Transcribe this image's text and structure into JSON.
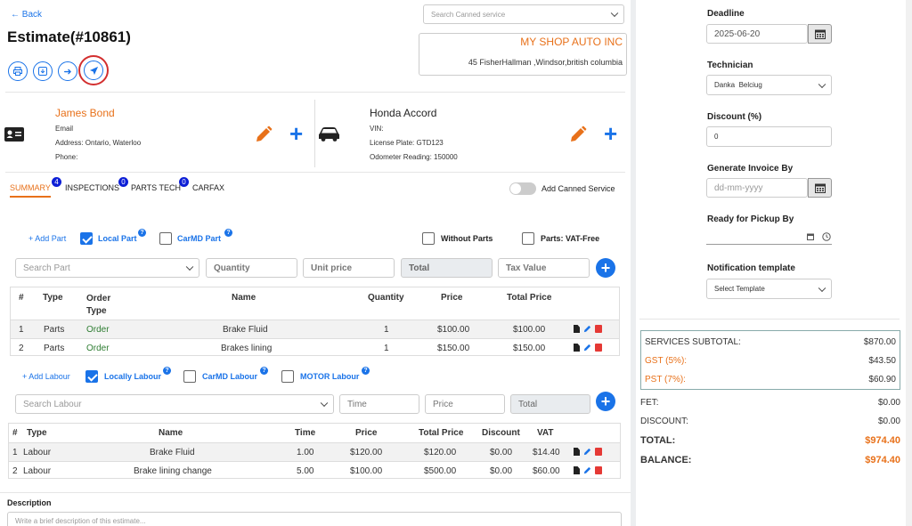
{
  "header": {
    "back_label": "Back",
    "title": "Estimate(#10861)",
    "canned_search_placeholder": "Search Canned service",
    "shop_name": "MY SHOP AUTO INC",
    "shop_address": "45 FisherHallman ,Windsor,british columbia"
  },
  "customer": {
    "name": "James Bond",
    "email_label": "Email",
    "address": "Address: Ontario, Waterloo",
    "phone_label": "Phone:"
  },
  "vehicle": {
    "name": "Honda Accord",
    "vin": "VIN:",
    "plate": "License Plate: GTD123",
    "odometer": "Odometer Reading: 150000"
  },
  "tabs": [
    {
      "label": "SUMMARY",
      "badge": "4"
    },
    {
      "label": "INSPECTIONS",
      "badge": "0"
    },
    {
      "label": "PARTS TECH",
      "badge": "0"
    },
    {
      "label": "CARFAX",
      "badge": ""
    }
  ],
  "add_canned_label": "Add Canned Service",
  "parts": {
    "add_label": "+ Add Part",
    "local_label": "Local Part",
    "carmd_label": "CarMD Part",
    "without_label": "Without Parts",
    "vatfree_label": "Parts: VAT-Free",
    "search_placeholder": "Search Part",
    "qty_placeholder": "Quantity",
    "unit_placeholder": "Unit price",
    "total_placeholder": "Total",
    "tax_placeholder": "Tax Value",
    "headers": [
      "#",
      "Type",
      "Order Type",
      "Name",
      "Quantity",
      "Price",
      "Total Price"
    ],
    "rows": [
      {
        "n": "1",
        "type": "Parts",
        "order": "Order",
        "name": "Brake Fluid",
        "qty": "1",
        "price": "$100.00",
        "total": "$100.00"
      },
      {
        "n": "2",
        "type": "Parts",
        "order": "Order",
        "name": "Brakes lining",
        "qty": "1",
        "price": "$150.00",
        "total": "$150.00"
      }
    ]
  },
  "labour": {
    "add_label": "+ Add Labour",
    "local_label": "Locally Labour",
    "carmd_label": "CarMD Labour",
    "motor_label": "MOTOR Labour",
    "search_placeholder": "Search Labour",
    "time_placeholder": "Time",
    "price_placeholder": "Price",
    "total_placeholder": "Total",
    "headers": [
      "#",
      "Type",
      "Name",
      "Time",
      "Price",
      "Total Price",
      "Discount",
      "VAT"
    ],
    "rows": [
      {
        "n": "1",
        "type": "Labour",
        "name": "Brake Fluid",
        "time": "1.00",
        "price": "$120.00",
        "total": "$120.00",
        "discount": "$0.00",
        "vat": "$14.40"
      },
      {
        "n": "2",
        "type": "Labour",
        "name": "Brake lining change",
        "time": "5.00",
        "price": "$100.00",
        "total": "$500.00",
        "discount": "$0.00",
        "vat": "$60.00"
      }
    ]
  },
  "description": {
    "label": "Description",
    "placeholder": "Write a brief description of this estimate..."
  },
  "side": {
    "deadline_label": "Deadline",
    "deadline_value": "2025-06-20",
    "technician_label": "Technician",
    "technician_value": "Danka  Belciug",
    "discount_label": "Discount (%)",
    "discount_value": "0",
    "invoice_label": "Generate Invoice By",
    "invoice_placeholder": "dd-mm-yyyy",
    "pickup_label": "Ready for Pickup By",
    "notif_label": "Notification template",
    "notif_value": "Select Template"
  },
  "summary": {
    "subtotal_label": "SERVICES SUBTOTAL:",
    "subtotal": "$870.00",
    "gst_label": "GST (5%):",
    "gst": "$43.50",
    "pst_label": "PST (7%):",
    "pst": "$60.90",
    "fet_label": "FET:",
    "fet": "$0.00",
    "discount_label": "DISCOUNT:",
    "discount": "$0.00",
    "total_label": "TOTAL:",
    "total": "$974.40",
    "balance_label": "BALANCE:",
    "balance": "$974.40"
  },
  "colors": {
    "accent": "#1a73e8",
    "brand_orange": "#e8711a",
    "green": "#2e7d32",
    "highlight_ring": "#d32f2f"
  }
}
